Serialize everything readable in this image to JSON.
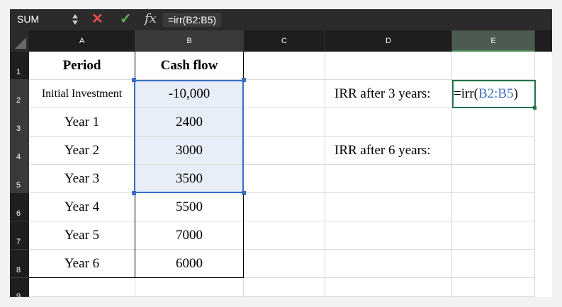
{
  "formula_bar": {
    "name_box": "SUM",
    "cancel_symbol": "✕",
    "confirm_symbol": "✓",
    "fx_label": "fx",
    "formula": "=irr(B2:B5)",
    "icons": [
      "stepper-icon",
      "cancel-icon",
      "confirm-icon",
      "fx-icon"
    ]
  },
  "columns": [
    "A",
    "B",
    "C",
    "D",
    "E"
  ],
  "rows": [
    "1",
    "2",
    "3",
    "4",
    "5",
    "6",
    "7",
    "8",
    "9"
  ],
  "cells": {
    "A1": "Period",
    "B1": "Cash flow",
    "A2": "Initial Investment",
    "B2": "-10,000",
    "A3": "Year 1",
    "B3": "2400",
    "A4": "Year 2",
    "B4": "3000",
    "A5": "Year 3",
    "B5": "3500",
    "A6": "Year 4",
    "B6": "5500",
    "A7": "Year 5",
    "B7": "7000",
    "A8": "Year 6",
    "B8": "6000",
    "D2": "IRR after 3 years:",
    "D4": "IRR after 6 years:"
  },
  "edit_cell": {
    "prefix": "=irr(",
    "ref": "B2:B5",
    "suffix": ")"
  },
  "colors": {
    "range_highlight": "#3b6fc4",
    "active_border": "#217346",
    "cancel": "#e34a4a",
    "confirm": "#5ab55a"
  }
}
